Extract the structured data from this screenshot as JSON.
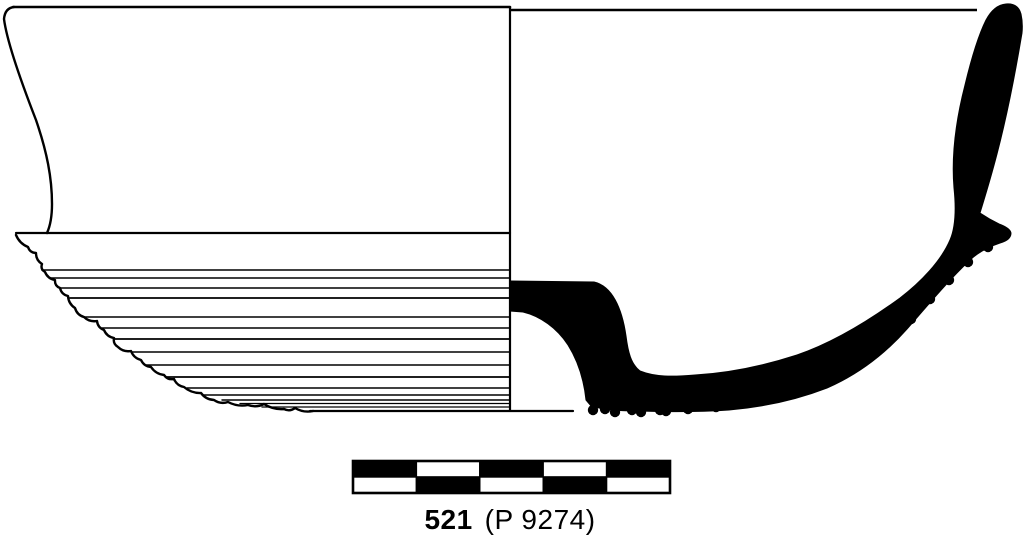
{
  "figure": {
    "caption": {
      "number": "521",
      "registration": "(P 9274)"
    },
    "colors": {
      "ink": "#000000",
      "paper": "#ffffff"
    },
    "scale_bar": {
      "rows": [
        [
          "#000000",
          "#ffffff",
          "#000000",
          "#ffffff",
          "#000000"
        ],
        [
          "#ffffff",
          "#000000",
          "#ffffff",
          "#000000",
          "#ffffff"
        ]
      ]
    }
  }
}
